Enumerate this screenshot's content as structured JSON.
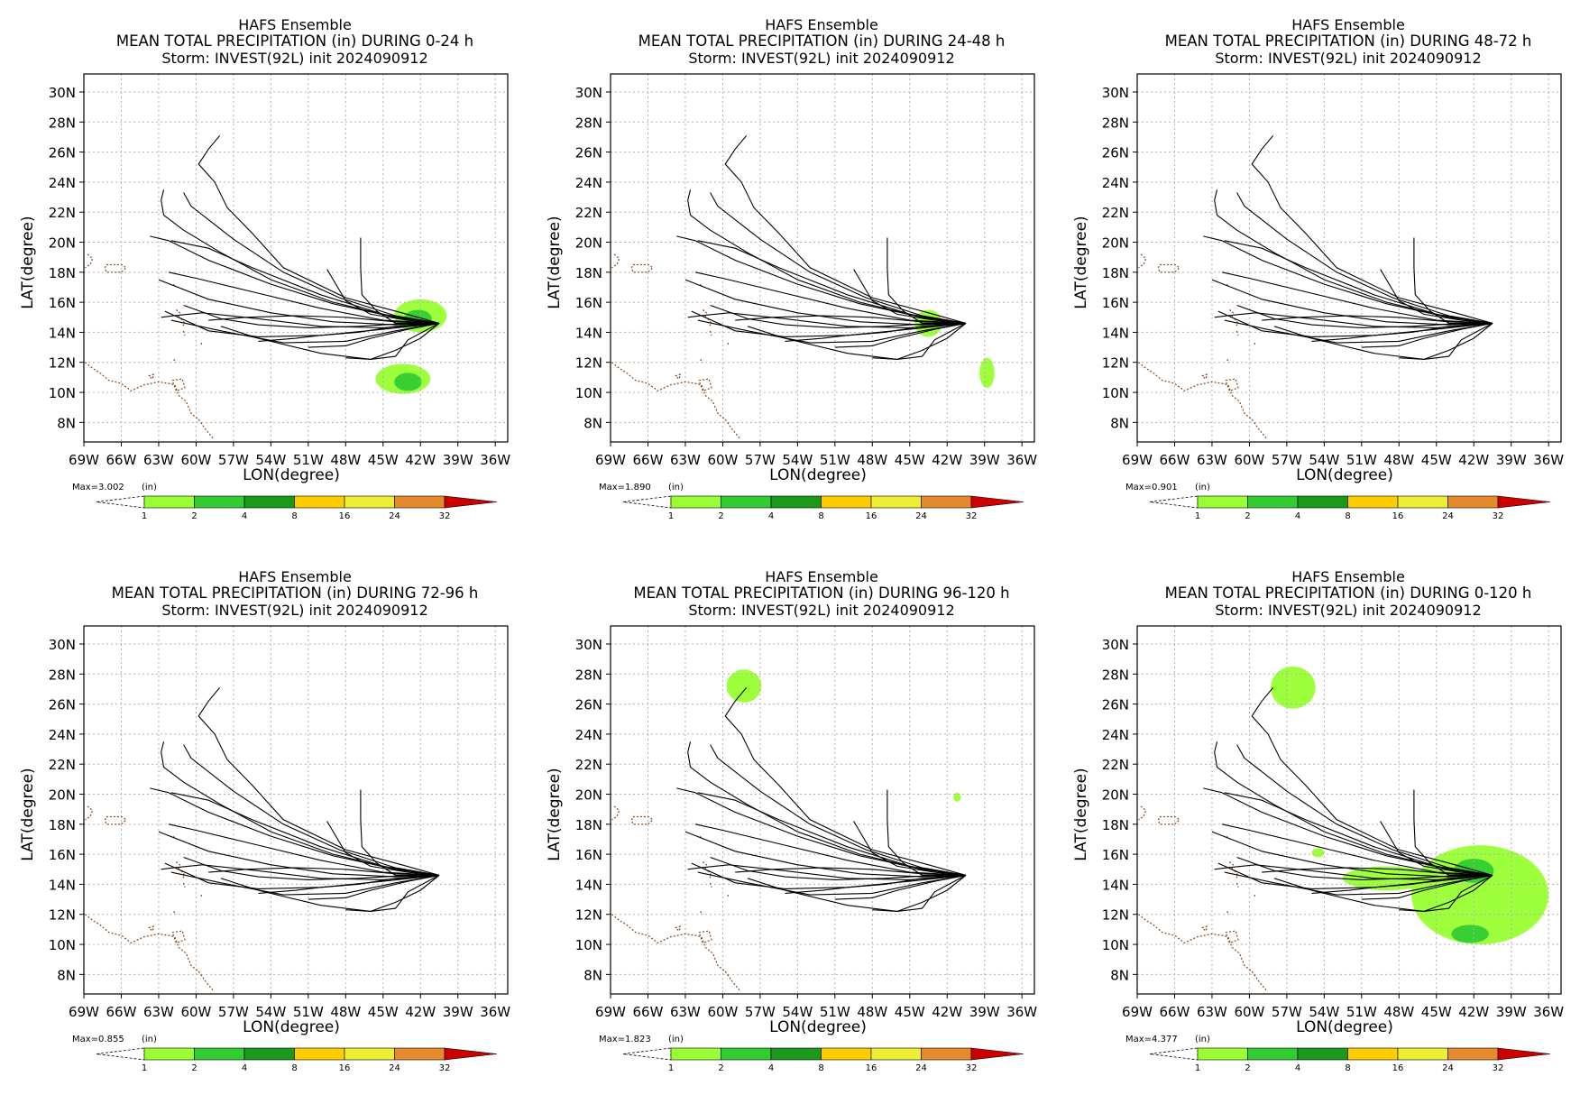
{
  "figure": {
    "header_line1": "HAFS Ensemble",
    "storm_line": "Storm: INVEST(92L) init 2024090912",
    "xlabel": "LON(degree)",
    "ylabel": "LAT(degree)",
    "units_label": "(in)"
  },
  "axes": {
    "x_ticks": [
      "69W",
      "66W",
      "63W",
      "60W",
      "57W",
      "54W",
      "51W",
      "48W",
      "45W",
      "42W",
      "39W",
      "36W"
    ],
    "x_values": [
      -69,
      -66,
      -63,
      -60,
      -57,
      -54,
      -51,
      -48,
      -45,
      -42,
      -39,
      -36
    ],
    "y_ticks": [
      "8N",
      "10N",
      "12N",
      "14N",
      "16N",
      "18N",
      "20N",
      "22N",
      "24N",
      "26N",
      "28N",
      "30N"
    ],
    "y_values": [
      8,
      10,
      12,
      14,
      16,
      18,
      20,
      22,
      24,
      26,
      28,
      30
    ],
    "xlim": [
      -69,
      -35
    ],
    "ylim": [
      6.7,
      31.2
    ],
    "grid": true
  },
  "colorbar": {
    "levels": [
      "1",
      "2",
      "4",
      "8",
      "16",
      "24",
      "32"
    ],
    "colors": [
      "#99ff33",
      "#33cc33",
      "#1a991a",
      "#ffcc00",
      "#eeee33",
      "#e68a2e",
      "#cc0000"
    ]
  },
  "track_color": "#000000",
  "coast_color": "#8b4513",
  "chart_data": [
    {
      "type": "heatmap",
      "panel_title": "MEAN TOTAL PRECIPITATION (in) DURING  0-24 h",
      "max_label": "Max=3.002",
      "period": "0-24 h",
      "max_value": 3.002,
      "rain_areas": [
        {
          "lon": -42,
          "lat": 15.1,
          "rlon": 2.1,
          "rlat": 1.1,
          "level": 1
        },
        {
          "lon": -42.2,
          "lat": 14.9,
          "rlon": 1.1,
          "rlat": 0.6,
          "level": 2
        },
        {
          "lon": -43.4,
          "lat": 10.9,
          "rlon": 2.2,
          "rlat": 1.0,
          "level": 1
        },
        {
          "lon": -43.0,
          "lat": 10.7,
          "rlon": 1.1,
          "rlat": 0.6,
          "level": 2
        }
      ]
    },
    {
      "type": "heatmap",
      "panel_title": "MEAN TOTAL PRECIPITATION (in) DURING 24-48 h",
      "max_label": "Max=1.890",
      "period": "24-48 h",
      "max_value": 1.89,
      "rain_areas": [
        {
          "lon": -43.5,
          "lat": 14.6,
          "rlon": 1.1,
          "rlat": 0.9,
          "level": 1
        },
        {
          "lon": -38.8,
          "lat": 11.3,
          "rlon": 0.6,
          "rlat": 1.0,
          "level": 1
        }
      ]
    },
    {
      "type": "heatmap",
      "panel_title": "MEAN TOTAL PRECIPITATION (in) DURING 48-72 h",
      "max_label": "Max=0.901",
      "period": "48-72 h",
      "max_value": 0.901,
      "rain_areas": []
    },
    {
      "type": "heatmap",
      "panel_title": "MEAN TOTAL PRECIPITATION (in) DURING 72-96 h",
      "max_label": "Max=0.855",
      "period": "72-96 h",
      "max_value": 0.855,
      "rain_areas": []
    },
    {
      "type": "heatmap",
      "panel_title": "MEAN TOTAL PRECIPITATION (in) DURING 96-120 h",
      "max_label": "Max=1.823",
      "period": "96-120 h",
      "max_value": 1.823,
      "rain_areas": [
        {
          "lon": -58.3,
          "lat": 27.2,
          "rlon": 1.4,
          "rlat": 1.1,
          "level": 1
        },
        {
          "lon": -41.2,
          "lat": 19.8,
          "rlon": 0.3,
          "rlat": 0.3,
          "level": 1
        }
      ]
    },
    {
      "type": "heatmap",
      "panel_title": "MEAN TOTAL PRECIPITATION (in) DURING 0-120 h",
      "max_label": "Max=4.377",
      "period": "0-120 h",
      "max_value": 4.377,
      "rain_areas": [
        {
          "lon": -56.5,
          "lat": 27.1,
          "rlon": 1.8,
          "rlat": 1.4,
          "level": 1
        },
        {
          "lon": -41.5,
          "lat": 13.3,
          "rlon": 5.5,
          "rlat": 3.3,
          "level": 1
        },
        {
          "lon": -49,
          "lat": 14.4,
          "rlon": 3.5,
          "rlat": 0.8,
          "level": 1
        },
        {
          "lon": -42,
          "lat": 14.9,
          "rlon": 1.6,
          "rlat": 0.8,
          "level": 2
        },
        {
          "lon": -42.3,
          "lat": 10.7,
          "rlon": 1.5,
          "rlat": 0.6,
          "level": 2
        },
        {
          "lon": -54.5,
          "lat": 16.1,
          "rlon": 0.5,
          "rlat": 0.3,
          "level": 1
        }
      ]
    }
  ],
  "tracks": [
    [
      [
        -40.5,
        14.6
      ],
      [
        -43.5,
        15.3
      ],
      [
        -48,
        16.3
      ],
      [
        -53,
        18.3
      ],
      [
        -55.5,
        20.6
      ],
      [
        -57.5,
        22.3
      ],
      [
        -58.5,
        24.0
      ],
      [
        -59.8,
        25.2
      ],
      [
        -59.0,
        26.2
      ],
      [
        -58.1,
        27.1
      ]
    ],
    [
      [
        -40.5,
        14.6
      ],
      [
        -44,
        15.1
      ],
      [
        -48.5,
        16.3
      ],
      [
        -53,
        18.0
      ],
      [
        -57,
        20.2
      ],
      [
        -60.4,
        22.4
      ],
      [
        -61.0,
        23.3
      ]
    ],
    [
      [
        -40.5,
        14.6
      ],
      [
        -44,
        15.0
      ],
      [
        -49,
        16.0
      ],
      [
        -54,
        17.5
      ],
      [
        -58,
        19.3
      ],
      [
        -61.0,
        20.8
      ],
      [
        -62.6,
        21.8
      ],
      [
        -62.8,
        22.8
      ],
      [
        -62.6,
        23.5
      ]
    ],
    [
      [
        -40.5,
        14.6
      ],
      [
        -45,
        15.2
      ],
      [
        -50,
        16.5
      ],
      [
        -55.5,
        18.3
      ],
      [
        -59,
        19.6
      ],
      [
        -62.0,
        20.1
      ]
    ],
    [
      [
        -40.5,
        14.6
      ],
      [
        -44,
        15.0
      ],
      [
        -49,
        15.9
      ],
      [
        -54,
        17.2
      ],
      [
        -59,
        18.8
      ],
      [
        -62.2,
        20.1
      ],
      [
        -63.7,
        20.4
      ]
    ],
    [
      [
        -40.5,
        14.6
      ],
      [
        -45,
        14.8
      ],
      [
        -50,
        15.6
      ],
      [
        -55,
        16.6
      ],
      [
        -60,
        17.6
      ],
      [
        -62.2,
        18.0
      ]
    ],
    [
      [
        -40.5,
        14.6
      ],
      [
        -44,
        14.5
      ],
      [
        -49,
        14.7
      ],
      [
        -54,
        15.3
      ],
      [
        -59,
        16.2
      ],
      [
        -63.0,
        17.5
      ]
    ],
    [
      [
        -40.5,
        14.6
      ],
      [
        -45,
        14.3
      ],
      [
        -50,
        14.4
      ],
      [
        -55,
        14.9
      ],
      [
        -59.5,
        15.3
      ],
      [
        -61.8,
        15.1
      ],
      [
        -62.8,
        15.0
      ]
    ],
    [
      [
        -40.5,
        14.6
      ],
      [
        -45,
        14.2
      ],
      [
        -50,
        13.8
      ],
      [
        -55,
        13.7
      ],
      [
        -59,
        14.1
      ],
      [
        -62.5,
        15.4
      ]
    ],
    [
      [
        -40.5,
        14.6
      ],
      [
        -44,
        14.1
      ],
      [
        -48,
        13.4
      ],
      [
        -53,
        13.3
      ],
      [
        -58,
        14.1
      ],
      [
        -62.0,
        14.8
      ]
    ],
    [
      [
        -40.5,
        14.6
      ],
      [
        -42,
        13.6
      ],
      [
        -44,
        12.8
      ],
      [
        -46,
        12.2
      ],
      [
        -50,
        12.6
      ],
      [
        -55,
        13.6
      ],
      [
        -58,
        14.4
      ]
    ],
    [
      [
        -40.5,
        14.6
      ],
      [
        -43,
        13.5
      ],
      [
        -44,
        12.4
      ],
      [
        -46,
        12.2
      ],
      [
        -48,
        12.3
      ]
    ],
    [
      [
        -40.5,
        14.6
      ],
      [
        -43,
        14.6
      ],
      [
        -47,
        14.4
      ],
      [
        -51,
        14.3
      ],
      [
        -55,
        14.5
      ],
      [
        -58,
        14.9
      ],
      [
        -61,
        15.8
      ]
    ],
    [
      [
        -40.5,
        14.6
      ],
      [
        -43,
        14.8
      ],
      [
        -46,
        15.2
      ],
      [
        -48,
        16.1
      ],
      [
        -49,
        17.5
      ],
      [
        -49.5,
        18.2
      ]
    ],
    [
      [
        -40.5,
        14.6
      ],
      [
        -44,
        14.6
      ],
      [
        -45.5,
        15.4
      ],
      [
        -46.7,
        16.5
      ],
      [
        -46.8,
        18.3
      ],
      [
        -46.8,
        20.3
      ]
    ],
    [
      [
        -40.5,
        14.6
      ],
      [
        -44,
        14.4
      ],
      [
        -47,
        14.0
      ],
      [
        -50,
        13.8
      ],
      [
        -52,
        13.6
      ],
      [
        -55,
        13.4
      ]
    ],
    [
      [
        -40.5,
        14.6
      ],
      [
        -43,
        14.2
      ],
      [
        -46,
        13.6
      ],
      [
        -48,
        13.1
      ],
      [
        -51,
        13.0
      ]
    ],
    [
      [
        -40.5,
        14.6
      ],
      [
        -44,
        14.7
      ],
      [
        -48,
        15.0
      ],
      [
        -52,
        15.1
      ],
      [
        -56,
        15.0
      ],
      [
        -59,
        14.8
      ]
    ]
  ],
  "coastline": [
    [
      [
        -68.7,
        19.2
      ],
      [
        -68.3,
        18.9
      ],
      [
        -68.5,
        18.5
      ],
      [
        -68.9,
        18.3
      ]
    ],
    [
      [
        -67.2,
        18.5
      ],
      [
        -66.0,
        18.5
      ],
      [
        -65.6,
        18.3
      ],
      [
        -66.0,
        18.0
      ],
      [
        -67.2,
        18.0
      ],
      [
        -67.3,
        18.3
      ],
      [
        -67.2,
        18.5
      ]
    ],
    [
      [
        -68.9,
        12.0
      ],
      [
        -68.3,
        11.6
      ],
      [
        -67.7,
        11.3
      ],
      [
        -67.0,
        10.8
      ],
      [
        -66.0,
        10.6
      ],
      [
        -65.2,
        10.1
      ],
      [
        -64.2,
        10.5
      ],
      [
        -63.0,
        10.7
      ],
      [
        -62.2,
        10.6
      ],
      [
        -61.7,
        10.5
      ],
      [
        -61.4,
        9.8
      ],
      [
        -60.8,
        9.4
      ],
      [
        -60.4,
        8.6
      ],
      [
        -59.8,
        8.2
      ],
      [
        -59.2,
        7.5
      ],
      [
        -58.6,
        6.9
      ]
    ],
    [
      [
        -61.9,
        10.8
      ],
      [
        -61.1,
        10.9
      ],
      [
        -60.9,
        10.3
      ],
      [
        -61.6,
        10.1
      ],
      [
        -61.9,
        10.8
      ]
    ],
    [
      [
        -63.8,
        11.1
      ],
      [
        -63.4,
        11.2
      ],
      [
        -63.5,
        10.9
      ],
      [
        -63.8,
        11.1
      ]
    ],
    [
      [
        -61.6,
        15.5
      ],
      [
        -61.3,
        15.3
      ],
      [
        -61.4,
        15.0
      ]
    ],
    [
      [
        -61.2,
        14.9
      ],
      [
        -60.9,
        14.6
      ],
      [
        -61.1,
        14.4
      ]
    ],
    [
      [
        -61.0,
        14.1
      ],
      [
        -60.9,
        13.8
      ]
    ],
    [
      [
        -59.6,
        13.3
      ],
      [
        -59.5,
        13.1
      ]
    ],
    [
      [
        -61.8,
        12.2
      ],
      [
        -61.6,
        12.0
      ]
    ],
    [
      [
        -61.8,
        17.2
      ],
      [
        -61.7,
        17.0
      ]
    ]
  ]
}
